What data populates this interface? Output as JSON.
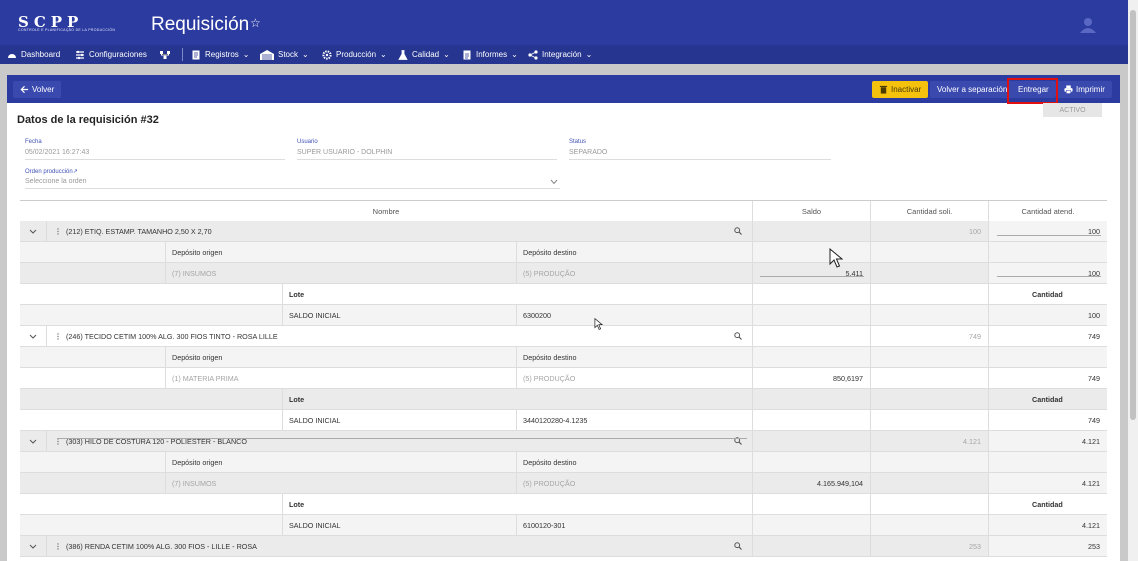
{
  "app": {
    "logo": "SCPP",
    "logo_subtitle": "CONTROLE E PLANIFICAÇÃO DE LA PRODUCCIÓN",
    "title": "Requisición"
  },
  "nav": {
    "items": [
      "Dashboard",
      "Configuraciones",
      "Registros",
      "Stock",
      "Producción",
      "Calidad",
      "Informes",
      "Integración"
    ]
  },
  "actions": {
    "back": "Volver",
    "inactivar": "Inactivar",
    "volver_separacion": "Volver a separación",
    "entregar": "Entregar",
    "imprimir": "Imprimir",
    "status_badge": "ACTIVO",
    "highlight_color": "#e01010"
  },
  "form": {
    "section_title": "Datos de la requisición #32",
    "fecha_label": "Fecha",
    "fecha_value": "05/02/2021 16:27:43",
    "usuario_label": "Usuario",
    "usuario_value": "SUPER USUARIO - DOLPHIN",
    "status_label": "Status",
    "status_value": "SEPARADO",
    "orden_label": "Orden producción",
    "orden_placeholder": "Seleccione la orden"
  },
  "table": {
    "columns": [
      "Nombre",
      "Saldo",
      "Cantidad soli.",
      "Cantidad atend."
    ],
    "deposito_origen": "Depósito origen",
    "deposito_destino": "Depósito destino",
    "lote": "Lote",
    "cantidad": "Cantidad",
    "items": [
      {
        "name": "(212) ETIQ. ESTAMP. TAMANHO 2,50 X 2,70",
        "cant_soli": "100",
        "cant_atend": "100",
        "origen": "(7) INSUMOS",
        "destino": "(5) PRODUÇÃO",
        "saldo": "5.411",
        "dep_atend": "100",
        "lote_name": "SALDO INICIAL",
        "lote_code": "6300200",
        "lote_cant": "100"
      },
      {
        "name": "(246) TECIDO CETIM 100% ALG. 300 FIOS TINTO - ROSA LILLE",
        "cant_soli": "749",
        "cant_atend": "749",
        "origen": "(1) MATERIA PRIMA",
        "destino": "(5) PRODUÇÃO",
        "saldo": "850,6197",
        "dep_atend": "749",
        "lote_name": "SALDO INICIAL",
        "lote_code": "3440120280-4.1235",
        "lote_cant": "749"
      },
      {
        "name": "(303) HILO DE COSTURA 120 - POLIESTER - BLANCO",
        "cant_soli": "4.121",
        "cant_atend": "4.121",
        "origen": "(7) INSUMOS",
        "destino": "(5) PRODUÇÃO",
        "saldo": "4.165.949,104",
        "dep_atend": "4.121",
        "lote_name": "SALDO INICIAL",
        "lote_code": "6100120-301",
        "lote_cant": "4.121"
      },
      {
        "name": "(386) RENDA CETIM 100% ALG. 300 FIOS - LILLE - ROSA",
        "cant_soli": "253",
        "cant_atend": "253"
      }
    ]
  }
}
